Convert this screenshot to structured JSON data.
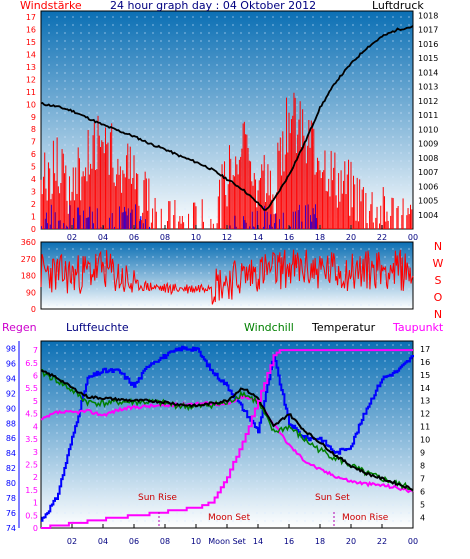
{
  "colors": {
    "red": "#ff0000",
    "blue": "#0000ff",
    "navy": "#000080",
    "black": "#000000",
    "magenta": "#ff00ff",
    "darkred": "#cc0000",
    "green": "#008000",
    "dark_magenta": "#b000b0",
    "sky_top": "#0b6fb4",
    "sky_bottom": "#ffffff"
  },
  "header": {
    "left_label": "Windstärke",
    "title": "24 hour graph day : 04 Oktober 2012",
    "right_label": "Luftdruck"
  },
  "time_axis": {
    "ticks": [
      "02",
      "04",
      "06",
      "08",
      "10",
      "12",
      "14",
      "16",
      "18",
      "20",
      "22",
      "00"
    ]
  },
  "time_axis_bottom": {
    "ticks": [
      "02",
      "04",
      "06",
      "08",
      "10",
      "Moon Set",
      "14",
      "16",
      "18",
      "20",
      "22",
      "00"
    ]
  },
  "chart_data": [
    {
      "id": "wind-pressure",
      "type": "line",
      "left_axis": {
        "label": "Windstärke",
        "ticks": [
          0,
          1,
          2,
          3,
          4,
          5,
          6,
          7,
          8,
          9,
          10,
          11,
          12,
          13,
          14,
          15,
          16,
          17
        ],
        "range": [
          0,
          17
        ]
      },
      "right_axis": {
        "label": "Luftdruck",
        "ticks": [
          1004,
          1005,
          1006,
          1007,
          1008,
          1009,
          1010,
          1011,
          1012,
          1013,
          1014,
          1015,
          1016,
          1017,
          1018
        ],
        "range": [
          1003,
          1018.3
        ]
      },
      "pressure_series": {
        "name": "Luftdruck",
        "x_hours": [
          0,
          1,
          2,
          3,
          4,
          5,
          6,
          7,
          8,
          9,
          10,
          11,
          12,
          13,
          14,
          14.5,
          15,
          16,
          17,
          18,
          19,
          20,
          21,
          22,
          23,
          24
        ],
        "values": [
          1011.8,
          1011.6,
          1011.3,
          1010.8,
          1010.3,
          1009.9,
          1009.5,
          1009.0,
          1008.6,
          1008.1,
          1007.7,
          1007.2,
          1006.5,
          1005.8,
          1004.8,
          1004.3,
          1005.0,
          1006.8,
          1009.0,
          1011.5,
          1013.3,
          1014.6,
          1015.7,
          1016.5,
          1017.0,
          1017.2
        ]
      },
      "wind_series": {
        "name": "Windstärke",
        "x_hours": [
          0,
          1,
          2,
          3,
          4,
          5,
          6,
          7,
          8,
          9,
          10,
          11,
          12,
          13,
          14,
          15,
          16,
          17,
          18,
          19,
          20,
          21,
          22,
          23,
          24
        ],
        "values": [
          4,
          5,
          3,
          6,
          8,
          5,
          4,
          2,
          0,
          0,
          0,
          0,
          4,
          7,
          4,
          3,
          9,
          8,
          6,
          4,
          3,
          2,
          1,
          1,
          0
        ]
      }
    },
    {
      "id": "wind-direction",
      "type": "scatter",
      "left_axis": {
        "ticks": [
          0,
          90,
          180,
          270,
          360
        ],
        "range": [
          0,
          360
        ]
      },
      "compass_labels": [
        "N",
        "W",
        "S",
        "O",
        "N"
      ],
      "series": {
        "x_hours": [
          0,
          2,
          4,
          6,
          8,
          10,
          12,
          14,
          16,
          18,
          20,
          22,
          24
        ],
        "values": [
          200,
          180,
          220,
          130,
          110,
          110,
          150,
          200,
          220,
          210,
          200,
          220,
          200
        ]
      }
    },
    {
      "id": "humidity-temperature",
      "type": "line",
      "labels": {
        "rain": "Regen",
        "humidity": "Luftfeuchte",
        "windchill": "Windchill",
        "temperature": "Temperatur",
        "dewpoint": "Taupunkt"
      },
      "rain_axis": {
        "ticks": [
          0,
          0.5,
          1,
          1.5,
          2,
          2.5,
          3,
          3.5,
          4,
          4.5,
          5,
          5.5,
          6,
          6.5,
          7
        ],
        "range": [
          0,
          7.2
        ]
      },
      "humidity_axis": {
        "ticks": [
          74,
          76,
          78,
          80,
          82,
          84,
          86,
          88,
          90,
          92,
          94,
          96,
          98
        ],
        "range": [
          74,
          99
        ]
      },
      "temperature_axis": {
        "ticks": [
          4,
          5,
          6,
          7,
          8,
          9,
          10,
          11,
          12,
          13,
          14,
          15,
          16,
          17
        ],
        "range": [
          3.2,
          17.6
        ]
      },
      "temperature_series": {
        "name": "Temperatur",
        "x_hours": [
          0,
          1,
          2,
          3,
          4,
          5,
          6,
          7,
          8,
          9,
          10,
          11,
          12,
          13,
          14,
          15,
          16,
          17,
          18,
          19,
          20,
          21,
          22,
          23,
          24
        ],
        "values": [
          15.3,
          14.8,
          14.0,
          13.3,
          13.2,
          13.1,
          13.0,
          13.0,
          12.9,
          12.7,
          12.6,
          12.8,
          13.0,
          14.0,
          13.2,
          11.0,
          12.0,
          10.7,
          9.8,
          8.8,
          8.0,
          7.4,
          7.0,
          6.6,
          6.2
        ]
      },
      "windchill_series": {
        "name": "Windchill",
        "x_hours": [
          0,
          1,
          2,
          3,
          4,
          5,
          6,
          7,
          8,
          9,
          10,
          11,
          12,
          13,
          14,
          15,
          16,
          17,
          18,
          19,
          20,
          21,
          22,
          23,
          24
        ],
        "values": [
          15.2,
          14.6,
          13.8,
          12.9,
          12.8,
          12.9,
          12.9,
          12.9,
          12.8,
          12.6,
          12.5,
          12.7,
          12.8,
          13.6,
          12.9,
          10.6,
          11.0,
          10.0,
          9.2,
          8.6,
          8.0,
          7.4,
          7.0,
          6.6,
          6.2
        ]
      },
      "humidity_series": {
        "name": "Luftfeuchte",
        "x_hours": [
          0,
          1,
          2,
          3,
          4,
          5,
          6,
          7,
          8,
          9,
          10,
          11,
          12,
          13,
          14,
          15,
          16,
          17,
          18,
          19,
          20,
          21,
          22,
          23,
          24
        ],
        "values": [
          75,
          78,
          86,
          94,
          95,
          95,
          93,
          96,
          97,
          98,
          98,
          95,
          93,
          90,
          87,
          97,
          88,
          86,
          86,
          84,
          85,
          90,
          94,
          95,
          97
        ]
      },
      "dewpoint_series": {
        "name": "Taupunkt",
        "x_hours": [
          0,
          1,
          2,
          3,
          4,
          5,
          6,
          7,
          8,
          9,
          10,
          11,
          12,
          13,
          14,
          15,
          16,
          17,
          18,
          19,
          20,
          21,
          22,
          23,
          24
        ],
        "values": [
          11.5,
          12.1,
          12.1,
          12.2,
          11.9,
          12.3,
          12.5,
          12.6,
          12.6,
          12.7,
          12.8,
          12.8,
          12.7,
          13.3,
          13.0,
          11.2,
          9.6,
          8.4,
          7.7,
          7.2,
          6.8,
          6.6,
          6.5,
          6.3,
          6.0
        ]
      },
      "rain_series": {
        "name": "Regen",
        "x_hours": [
          0,
          3.5,
          7.5,
          10,
          11,
          12,
          13,
          14,
          15,
          15.5,
          24
        ],
        "values": [
          0,
          0.3,
          0.6,
          0.8,
          1.0,
          2.0,
          3.4,
          5.0,
          6.8,
          7.0,
          7.0
        ]
      },
      "annotations": {
        "sun_rise": "Sun Rise",
        "moon_set": "Moon Set",
        "sun_set": "Sun Set",
        "moon_rise": "Moon Rise"
      }
    }
  ]
}
